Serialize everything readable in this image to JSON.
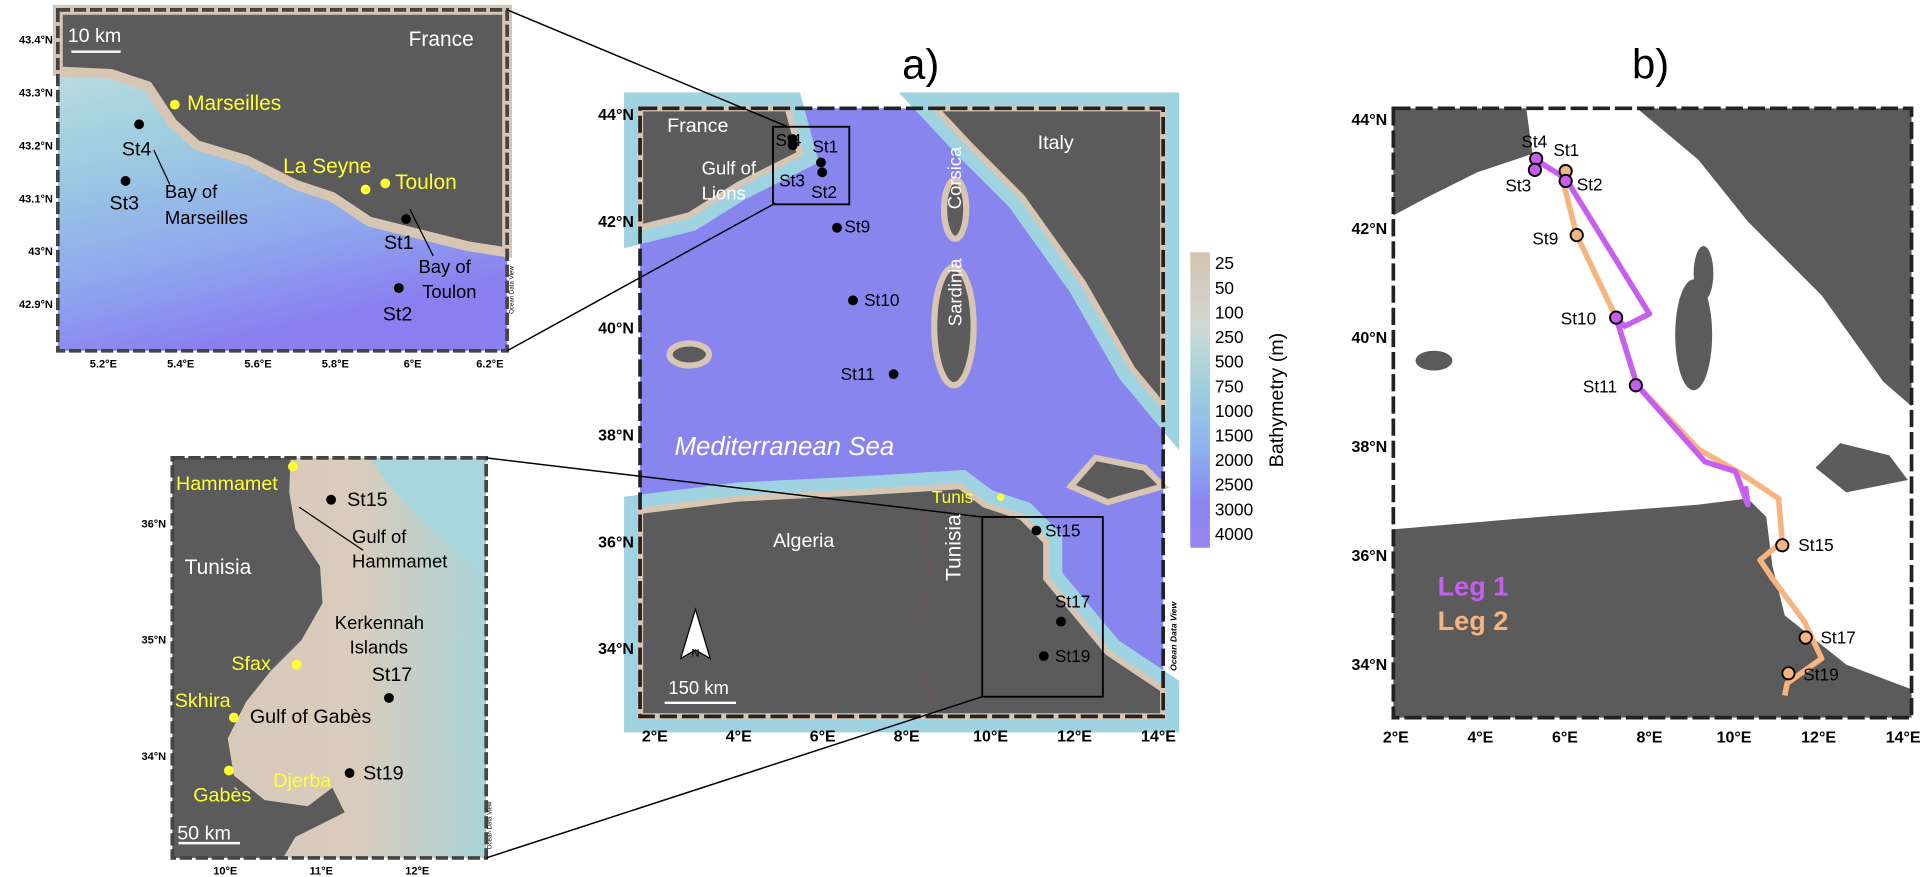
{
  "panel_a": {
    "title": "a)",
    "lon_ticks": [
      "2°E",
      "4°E",
      "6°E",
      "8°E",
      "10°E",
      "12°E",
      "14°E"
    ],
    "lat_ticks": [
      "44°N",
      "42°N",
      "40°N",
      "38°N",
      "36°N",
      "34°N"
    ],
    "labels": [
      "France",
      "Italy",
      "Gulf of",
      "Lions",
      "Corsica",
      "Sardinia",
      "Mediterranean Sea",
      "Algeria",
      "Tunisia",
      "Tunis",
      "St4",
      "St1",
      "St3",
      "St2",
      "St9",
      "St10",
      "St11",
      "St15",
      "St17",
      "St19",
      "150 km",
      "N",
      "Ocean Data View"
    ],
    "colorbar": {
      "title": "Bathymetry (m)",
      "levels": [
        "25",
        "50",
        "100",
        "250",
        "500",
        "750",
        "1000",
        "1500",
        "2000",
        "2500",
        "3000",
        "4000"
      ]
    }
  },
  "inset_top": {
    "lat_ticks": [
      "43.4°N",
      "43.3°N",
      "43.2°N",
      "43.1°N",
      "43°N",
      "42.9°N"
    ],
    "lon_ticks": [
      "5.2°E",
      "5.4°E",
      "5.6°E",
      "5.8°E",
      "6°E",
      "6.2°E"
    ],
    "labels": [
      "France",
      "10 km",
      "Marseilles",
      "St4",
      "St3",
      "Bay of",
      "Marseilles",
      "La Seyne",
      "Toulon",
      "St1",
      "Bay of",
      "Toulon",
      "St2",
      "Ocean Data View"
    ]
  },
  "inset_bottom": {
    "lat_ticks": [
      "36°N",
      "35°N",
      "34°N"
    ],
    "lon_ticks": [
      "10°E",
      "11°E",
      "12°E"
    ],
    "labels": [
      "Hammamet",
      "St15",
      "Gulf of",
      "Hammamet",
      "Tunisia",
      "Kerkennah",
      "Islands",
      "Sfax",
      "St17",
      "Skhira",
      "Gulf of Gabès",
      "St19",
      "Gabès",
      "Djerba",
      "50 km",
      "Ocean Data View"
    ]
  },
  "panel_b": {
    "title": "b)",
    "lon_ticks": [
      "2°E",
      "4°E",
      "6°E",
      "8°E",
      "10°E",
      "12°E",
      "14°E"
    ],
    "lat_ticks": [
      "44°N",
      "42°N",
      "40°N",
      "38°N",
      "36°N",
      "34°N"
    ],
    "labels": [
      "St4",
      "St1",
      "St3",
      "St2",
      "St9",
      "St10",
      "St11",
      "St15",
      "St17",
      "St19"
    ],
    "legend": [
      {
        "name": "Leg 1",
        "color": "#c65ef2"
      },
      {
        "name": "Leg 2",
        "color": "#f7b47e"
      }
    ]
  }
}
